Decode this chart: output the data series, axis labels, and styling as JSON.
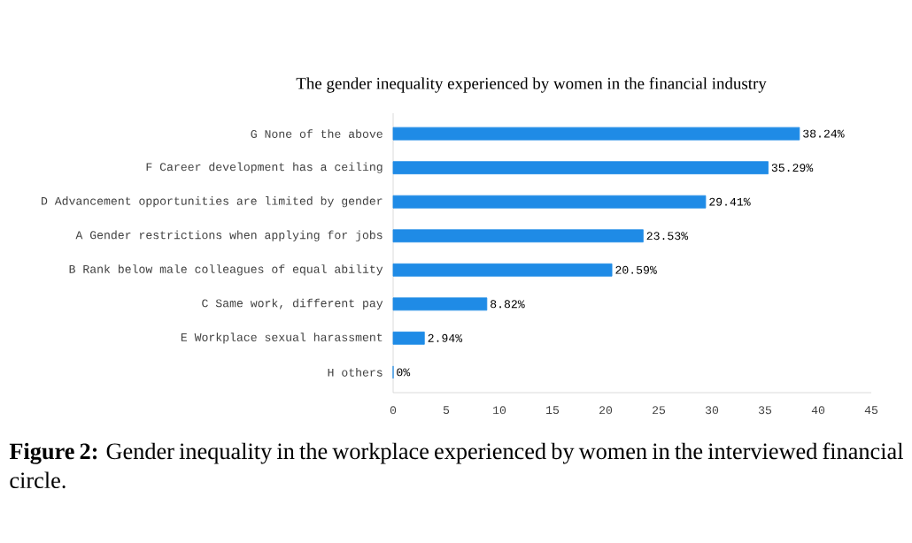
{
  "chart_data": {
    "type": "bar",
    "orientation": "horizontal",
    "title": "The gender inequality experienced by women in the financial industry",
    "categories": [
      "G None of the above",
      "F  Career development has a ceiling",
      "D Advancement opportunities are limited by gender",
      "A Gender restrictions when applying for jobs",
      "B Rank below male colleagues of equal ability",
      "C Same work, different pay",
      "E Workplace sexual harassment",
      "H        others"
    ],
    "values": [
      38.24,
      35.29,
      29.41,
      23.53,
      20.59,
      8.82,
      2.94,
      0
    ],
    "value_labels": [
      "38.24%",
      "35.29%",
      "29.41%",
      "23.53%",
      "20.59%",
      "8.82%",
      "2.94%",
      "0%"
    ],
    "color": "#1f8be6",
    "xlim": [
      0,
      45
    ],
    "xticks": [
      0,
      5,
      10,
      15,
      20,
      25,
      30,
      35,
      40,
      45
    ],
    "annotations": [
      "**Figure 2:** Gender inequality in the workplace experienced by women in the interviewed financial circle."
    ]
  }
}
